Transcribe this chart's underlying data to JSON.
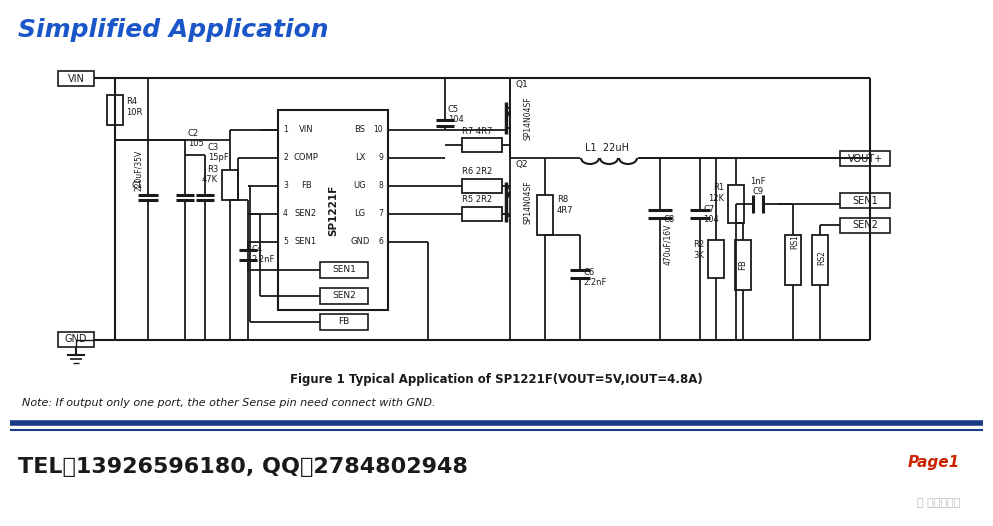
{
  "title": "Simplified Application",
  "title_color": "#1a56c8",
  "title_fontsize": 18,
  "fig_caption": "Figure 1 Typical Application of SP1221F(VOUT=5V,IOUT=4.8A)",
  "note_text": "Note: If output only one port, the other Sense pin need connect with GND.",
  "footer_tel": "TEL：13926596180, QQ：2784802948",
  "footer_page": "Page1",
  "bg_color": "#ffffff",
  "sch_color": "#1a1a1a",
  "navy": "#000080"
}
